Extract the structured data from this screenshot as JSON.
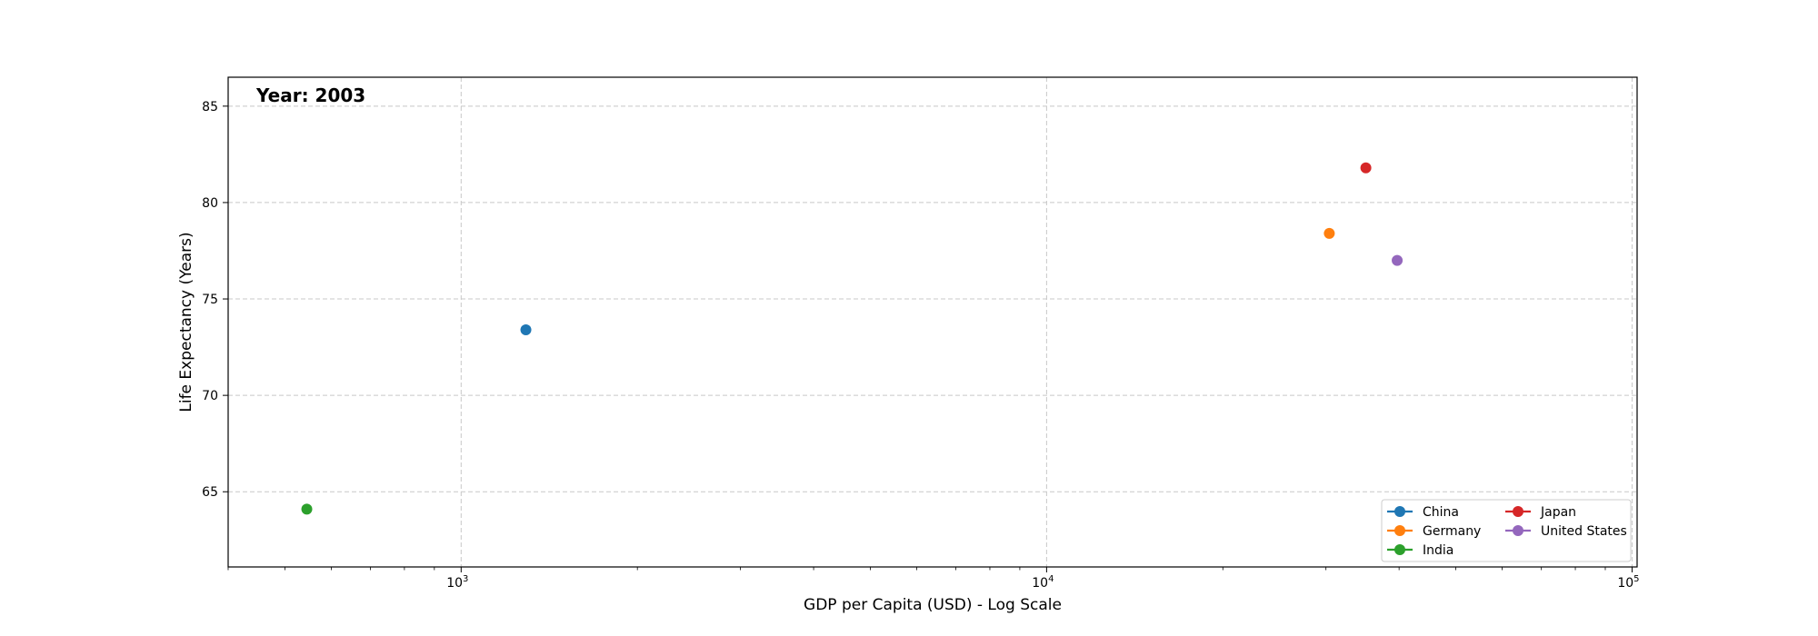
{
  "chart_data": {
    "type": "scatter",
    "title": "",
    "annotation": "Year: 2003",
    "xlabel": "GDP per Capita (USD) - Log Scale",
    "ylabel": "Life Expectancy (Years)",
    "x_scale": "log",
    "xlim": [
      400,
      102000
    ],
    "ylim": [
      61.1,
      86.5
    ],
    "x_ticks": [
      {
        "value": 1000,
        "base": "10",
        "exp": "3"
      },
      {
        "value": 10000,
        "base": "10",
        "exp": "4"
      },
      {
        "value": 100000,
        "base": "10",
        "exp": "5"
      }
    ],
    "y_ticks": [
      65,
      70,
      75,
      80,
      85
    ],
    "grid": true,
    "legend": {
      "position": "bottom-right",
      "columns": 2
    },
    "series": [
      {
        "name": "China",
        "color": "#1f77b4",
        "points": [
          {
            "x": 1290,
            "y": 73.4
          }
        ]
      },
      {
        "name": "Germany",
        "color": "#ff7f0e",
        "points": [
          {
            "x": 30400,
            "y": 78.4
          }
        ]
      },
      {
        "name": "India",
        "color": "#2ca02c",
        "points": [
          {
            "x": 545,
            "y": 64.1
          }
        ]
      },
      {
        "name": "Japan",
        "color": "#d62728",
        "points": [
          {
            "x": 35100,
            "y": 81.8
          }
        ]
      },
      {
        "name": "United States",
        "color": "#9467bd",
        "points": [
          {
            "x": 39700,
            "y": 77.0
          }
        ]
      }
    ]
  }
}
